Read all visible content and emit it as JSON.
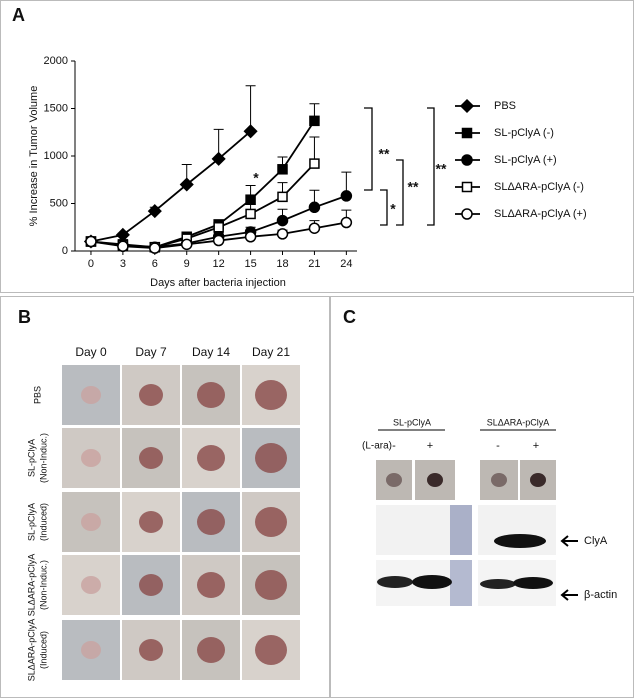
{
  "chart_data": {
    "type": "line",
    "xlabel": "Days after bacteria injection",
    "ylabel": "% Increase in Tumor Volume",
    "x": [
      0,
      3,
      6,
      9,
      12,
      15,
      18,
      21,
      24
    ],
    "xlim": [
      -1.5,
      25
    ],
    "xticks": [
      0,
      3,
      6,
      9,
      12,
      15,
      18,
      21,
      24
    ],
    "ylim": [
      0,
      2000
    ],
    "yticks": [
      0,
      500,
      1000,
      1500,
      2000
    ],
    "legend": "right",
    "series": [
      {
        "name": "PBS",
        "color": "#000000",
        "marker": "diamond",
        "filled": true,
        "values": [
          100,
          170,
          420,
          700,
          970,
          1260,
          null,
          null,
          null
        ],
        "errors": [
          0,
          20,
          40,
          210,
          310,
          480,
          null,
          null,
          null
        ]
      },
      {
        "name": "SL-pClyA (-)",
        "color": "#000000",
        "marker": "square",
        "filled": true,
        "values": [
          100,
          70,
          40,
          150,
          280,
          540,
          860,
          1370,
          null
        ],
        "errors": [
          0,
          20,
          20,
          30,
          40,
          150,
          130,
          180,
          null
        ]
      },
      {
        "name": "SL-pClyA (+)",
        "color": "#000000",
        "marker": "circle",
        "filled": true,
        "values": [
          100,
          60,
          40,
          80,
          150,
          200,
          320,
          460,
          580
        ],
        "errors": [
          0,
          20,
          20,
          30,
          40,
          50,
          120,
          180,
          250
        ]
      },
      {
        "name": "SLΔARA-pClyA (-)",
        "color": "#000000",
        "marker": "square",
        "filled": false,
        "values": [
          100,
          60,
          40,
          130,
          250,
          390,
          570,
          920,
          null
        ],
        "errors": [
          0,
          20,
          20,
          30,
          40,
          100,
          150,
          280,
          null
        ]
      },
      {
        "name": "SLΔARA-pClyA (+)",
        "color": "#000000",
        "marker": "circle",
        "filled": false,
        "values": [
          100,
          50,
          30,
          70,
          110,
          150,
          180,
          240,
          300
        ],
        "errors": [
          0,
          10,
          10,
          20,
          20,
          30,
          40,
          80,
          130
        ]
      }
    ],
    "annotations": [
      "*",
      "**",
      "*",
      "**",
      "**"
    ]
  },
  "panel_labels": [
    "A",
    "B",
    "C"
  ],
  "panel_b": {
    "days": [
      "Day 0",
      "Day 7",
      "Day 14",
      "Day 21"
    ],
    "rows": [
      [
        "PBS"
      ],
      [
        "SL-pClyA",
        "(Non-Induc.)"
      ],
      [
        "SL-pClyA",
        "(Induced)"
      ],
      [
        "SLΔARA-pClyA",
        "(Non-Induc.)"
      ],
      [
        "SLΔARA-pClyA",
        "(Induced)"
      ]
    ]
  },
  "panel_c": {
    "groups": [
      "SL-pClyA",
      "SLΔARA-pClyA"
    ],
    "condition": "(L-ara)",
    "signs": [
      "-",
      "+",
      "-",
      "+"
    ],
    "bands": [
      "ClyA",
      "β-actin"
    ]
  }
}
